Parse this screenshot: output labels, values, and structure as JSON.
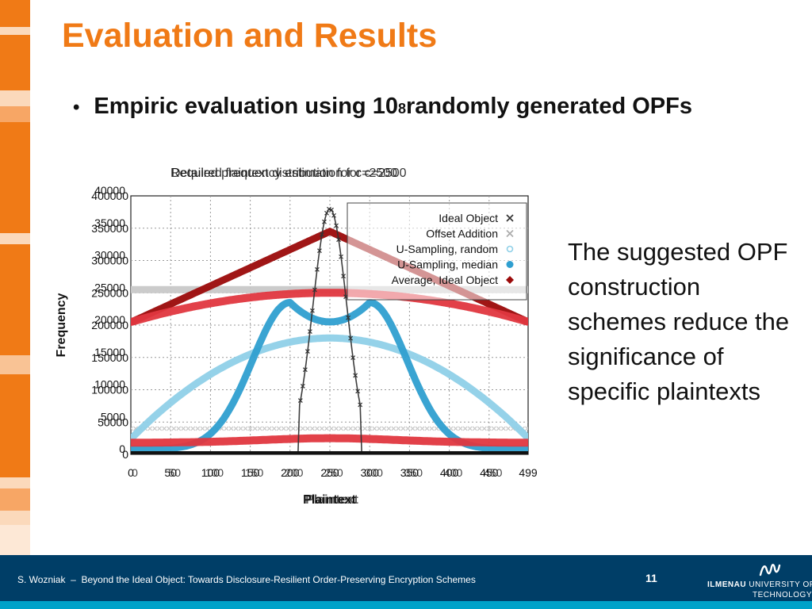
{
  "slide": {
    "title": "Evaluation and Results",
    "bullet_pre": "Empiric evaluation using 10",
    "bullet_sup": "8",
    "bullet_post": " randomly generated OPFs",
    "side_text": "The suggested OPF construction schemes reduce the significance of specific plaintexts"
  },
  "footer": {
    "author": "S. Wozniak",
    "separator": "–",
    "talk_title": "Beyond the Ideal Object: Towards Disclosure-Resilient Order-Preserving Encryption Schemes",
    "page_number": "11",
    "university_bold": "ILMENAU",
    "university_rest": "UNIVERSITY OF",
    "university_line2": "TECHNOLOGY"
  },
  "colors": {
    "orange": "#f07a16",
    "footer_blue": "#003e67",
    "footer_stripe": "#00a2c9",
    "ideal": "#333333",
    "offset": "#c8c8c8",
    "usamp_random": "#8fd0e8",
    "usamp_median": "#2f9fd0",
    "ideal_red": "#e0373f",
    "darkred": "#9b0a0a"
  },
  "chart_data": {
    "type": "line",
    "note": "Two overlaid plot panels with shared x axis (0-499)",
    "titles": [
      "Required frequency estimation for c=2500",
      "Detailed plaintext distribution for c=2500"
    ],
    "xlabel": "Plaintext",
    "ylabel": "Frequency",
    "xlim": [
      0,
      499
    ],
    "x_ticks": [
      "0",
      "50",
      "100",
      "150",
      "200",
      "250",
      "300",
      "350",
      "400",
      "450",
      "499"
    ],
    "x_ticks_overlay": [
      "0",
      "50",
      "100",
      "150",
      "200",
      "250",
      "300",
      "350",
      "400",
      "450"
    ],
    "y_axis_outer": {
      "ylim": [
        0,
        400000
      ],
      "ticks": [
        "0",
        "50000",
        "100000",
        "150000",
        "200000",
        "250000",
        "300000",
        "350000",
        "400000"
      ]
    },
    "y_axis_inner": {
      "ylim": [
        0,
        40000
      ],
      "ticks": [
        "0",
        "5000",
        "10000",
        "15000",
        "20000",
        "25000",
        "30000",
        "35000",
        "40000"
      ]
    },
    "legend": {
      "placement": "top-right",
      "entries": [
        "Ideal Object",
        "Offset Addition",
        "U-Sampling, random",
        "U-Sampling, median",
        "Average, Ideal Object"
      ]
    },
    "grid": true,
    "series": [
      {
        "name": "Ideal Object",
        "axis": "inner",
        "shape": "narrow-peak",
        "center": 250,
        "half_width": 38,
        "peak": 38000,
        "floor": 0,
        "marker": "x"
      },
      {
        "name": "Offset Addition",
        "axis": "outer",
        "shape": "flat",
        "level": 255000,
        "marker": "x"
      },
      {
        "name": "U-Sampling, random",
        "axis": "inner",
        "shape": "arch",
        "center": 250,
        "peak": 18000,
        "floor": 2500,
        "marker": "circle"
      },
      {
        "name": "U-Sampling, median",
        "axis": "inner",
        "shape": "double-hump",
        "peaks_x": [
          200,
          300
        ],
        "peak": 23500,
        "dip": 20500,
        "floor": 800,
        "marker": "filled-circle"
      },
      {
        "name": "Ideal Object (high-frequency bulge)",
        "axis": "outer",
        "shape": "arch",
        "center": 250,
        "peak": 250000,
        "floor": 205000
      },
      {
        "name": "Ideal Object (low baseline)",
        "axis": "inner",
        "shape": "flat-bump",
        "level": 1800,
        "peak": 2500
      },
      {
        "name": "Average, Ideal Object",
        "axis": "outer",
        "shape": "triangle",
        "center": 250,
        "peak": 345000,
        "floor": 205000,
        "marker": "diamond"
      }
    ]
  }
}
